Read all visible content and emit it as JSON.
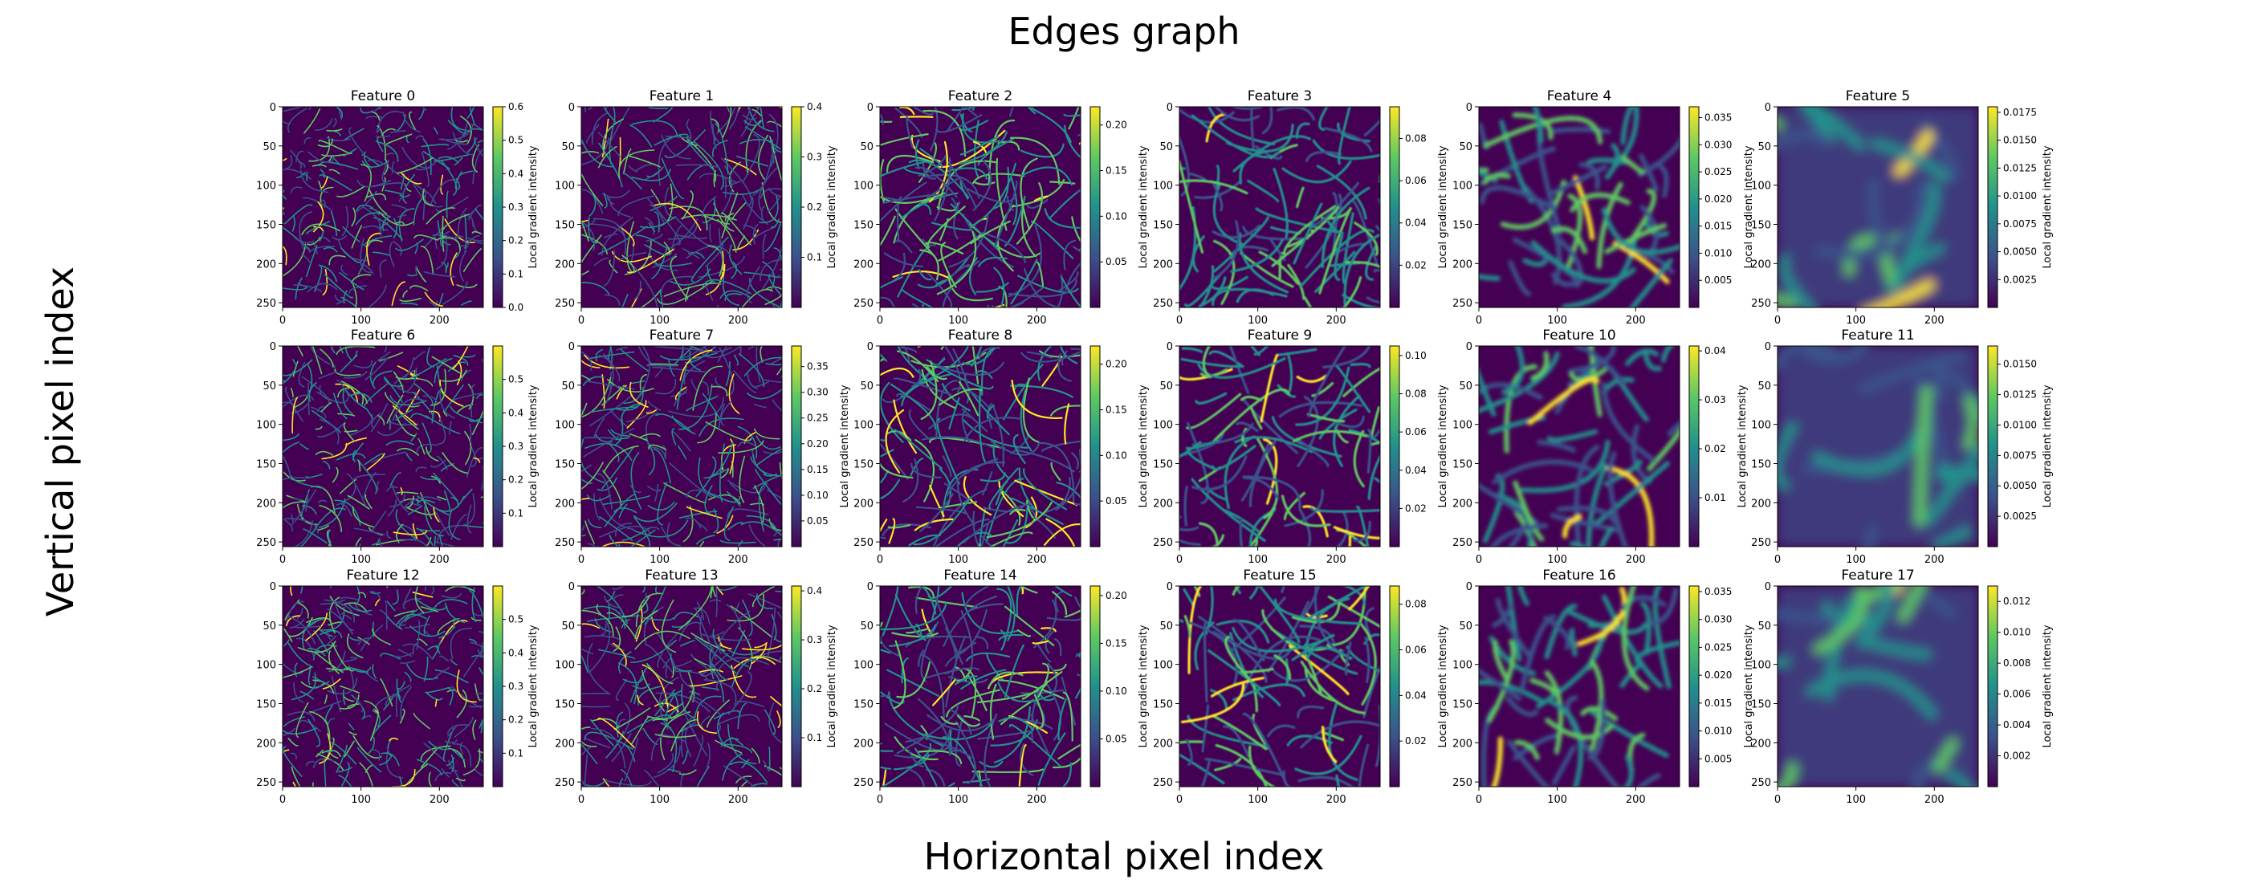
{
  "figure": {
    "title": "Edges graph",
    "xlabel": "Horizontal pixel index",
    "ylabel": "Vertical pixel index"
  },
  "colormap": [
    "#440154",
    "#3b528b",
    "#21918c",
    "#5ec962",
    "#fde725"
  ],
  "chart_data": {
    "type": "heatmap",
    "grid": {
      "rows": 3,
      "cols": 6
    },
    "x_ticks": [
      0,
      100,
      200
    ],
    "y_ticks": [
      0,
      50,
      100,
      150,
      200,
      250
    ],
    "xlim": [
      0,
      256
    ],
    "ylim": [
      256,
      0
    ],
    "colorbar_label": "Local gradient intensity",
    "panels": [
      {
        "title": "Feature 0",
        "vmin": 0,
        "vmax": 0.6,
        "ticks": [
          "0.0",
          "0.1",
          "0.2",
          "0.3",
          "0.4",
          "0.5",
          "0.6"
        ]
      },
      {
        "title": "Feature 1",
        "vmin": 0,
        "vmax": 0.4,
        "ticks": [
          "0.1",
          "0.2",
          "0.3",
          "0.4"
        ]
      },
      {
        "title": "Feature 2",
        "vmin": 0,
        "vmax": 0.22,
        "ticks": [
          "0.05",
          "0.10",
          "0.15",
          "0.20"
        ]
      },
      {
        "title": "Feature 3",
        "vmin": 0,
        "vmax": 0.095,
        "ticks": [
          "0.02",
          "0.04",
          "0.06",
          "0.08"
        ]
      },
      {
        "title": "Feature 4",
        "vmin": 0,
        "vmax": 0.037,
        "ticks": [
          "0.005",
          "0.010",
          "0.015",
          "0.020",
          "0.025",
          "0.030",
          "0.035"
        ]
      },
      {
        "title": "Feature 5",
        "vmin": 0,
        "vmax": 0.018,
        "ticks": [
          "0.0025",
          "0.0050",
          "0.0075",
          "0.0100",
          "0.0125",
          "0.0150",
          "0.0175"
        ]
      },
      {
        "title": "Feature 6",
        "vmin": 0,
        "vmax": 0.6,
        "ticks": [
          "0.1",
          "0.2",
          "0.3",
          "0.4",
          "0.5"
        ]
      },
      {
        "title": "Feature 7",
        "vmin": 0,
        "vmax": 0.39,
        "ticks": [
          "0.05",
          "0.10",
          "0.15",
          "0.20",
          "0.25",
          "0.30",
          "0.35"
        ]
      },
      {
        "title": "Feature 8",
        "vmin": 0,
        "vmax": 0.22,
        "ticks": [
          "0.05",
          "0.10",
          "0.15",
          "0.20"
        ]
      },
      {
        "title": "Feature 9",
        "vmin": 0,
        "vmax": 0.105,
        "ticks": [
          "0.02",
          "0.04",
          "0.06",
          "0.08",
          "0.10"
        ]
      },
      {
        "title": "Feature 10",
        "vmin": 0,
        "vmax": 0.041,
        "ticks": [
          "0.01",
          "0.02",
          "0.03",
          "0.04"
        ]
      },
      {
        "title": "Feature 11",
        "vmin": 0,
        "vmax": 0.0165,
        "ticks": [
          "0.0025",
          "0.0050",
          "0.0075",
          "0.0100",
          "0.0125",
          "0.0150"
        ]
      },
      {
        "title": "Feature 12",
        "vmin": 0,
        "vmax": 0.6,
        "ticks": [
          "0.1",
          "0.2",
          "0.3",
          "0.4",
          "0.5"
        ]
      },
      {
        "title": "Feature 13",
        "vmin": 0,
        "vmax": 0.41,
        "ticks": [
          "0.1",
          "0.2",
          "0.3",
          "0.4"
        ]
      },
      {
        "title": "Feature 14",
        "vmin": 0,
        "vmax": 0.21,
        "ticks": [
          "0.05",
          "0.10",
          "0.15",
          "0.20"
        ]
      },
      {
        "title": "Feature 15",
        "vmin": 0,
        "vmax": 0.088,
        "ticks": [
          "0.02",
          "0.04",
          "0.06",
          "0.08"
        ]
      },
      {
        "title": "Feature 16",
        "vmin": 0,
        "vmax": 0.036,
        "ticks": [
          "0.005",
          "0.010",
          "0.015",
          "0.020",
          "0.025",
          "0.030",
          "0.035"
        ]
      },
      {
        "title": "Feature 17",
        "vmin": 0,
        "vmax": 0.013,
        "ticks": [
          "0.002",
          "0.004",
          "0.006",
          "0.008",
          "0.010",
          "0.012"
        ]
      }
    ]
  }
}
